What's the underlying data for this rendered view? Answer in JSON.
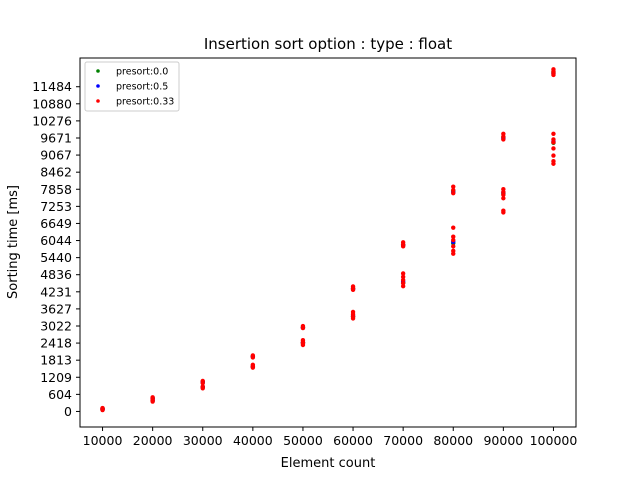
{
  "chart_data": {
    "type": "scatter",
    "title": "Insertion sort option : type : float",
    "xlabel": "Element count",
    "ylabel": "Sorting time [ms]",
    "xlim": [
      5500,
      104500
    ],
    "ylim": [
      -550,
      12500
    ],
    "xticks": [
      10000,
      20000,
      30000,
      40000,
      50000,
      60000,
      70000,
      80000,
      90000,
      100000
    ],
    "xtick_labels": [
      "10000",
      "20000",
      "30000",
      "40000",
      "50000",
      "60000",
      "70000",
      "80000",
      "90000",
      "100000"
    ],
    "yticks": [
      0,
      604,
      1209,
      1813,
      2418,
      3022,
      3627,
      4231,
      4836,
      5440,
      6044,
      6649,
      7253,
      7858,
      8462,
      9067,
      9671,
      10276,
      10880,
      11484
    ],
    "ytick_labels": [
      "0",
      "604",
      "1209",
      "1813",
      "2418",
      "3022",
      "3627",
      "4231",
      "4836",
      "5440",
      "6044",
      "6649",
      "7253",
      "7858",
      "8462",
      "9067",
      "9671",
      "10276",
      "10880",
      "11484"
    ],
    "grid": false,
    "legend_position": "top-left",
    "series": [
      {
        "name": "presort:0.0",
        "color": "#008000",
        "points": [
          [
            10000,
            110
          ],
          [
            10000,
            60
          ],
          [
            20000,
            470
          ],
          [
            20000,
            380
          ],
          [
            30000,
            1050
          ],
          [
            30000,
            860
          ],
          [
            40000,
            1950
          ],
          [
            40000,
            1580
          ],
          [
            50000,
            2980
          ],
          [
            50000,
            2430
          ],
          [
            60000,
            4350
          ],
          [
            60000,
            3350
          ],
          [
            70000,
            5900
          ],
          [
            70000,
            4550
          ],
          [
            80000,
            7800
          ],
          [
            80000,
            5950
          ],
          [
            90000,
            9700
          ],
          [
            90000,
            7700
          ],
          [
            100000,
            12000
          ],
          [
            100000,
            9500
          ]
        ]
      },
      {
        "name": "presort:0.5",
        "color": "#0000ff",
        "points": [
          [
            10000,
            100
          ],
          [
            10000,
            70
          ],
          [
            20000,
            460
          ],
          [
            20000,
            390
          ],
          [
            30000,
            1040
          ],
          [
            30000,
            870
          ],
          [
            40000,
            1940
          ],
          [
            40000,
            1590
          ],
          [
            50000,
            2960
          ],
          [
            50000,
            2440
          ],
          [
            60000,
            4330
          ],
          [
            60000,
            3380
          ],
          [
            70000,
            5880
          ],
          [
            70000,
            4600
          ],
          [
            80000,
            7750
          ],
          [
            80000,
            6000
          ],
          [
            90000,
            9650
          ],
          [
            90000,
            7750
          ],
          [
            100000,
            11950
          ],
          [
            100000,
            9550
          ]
        ]
      },
      {
        "name": "presort:0.33",
        "color": "#ff0000",
        "points": [
          [
            10000,
            120
          ],
          [
            10000,
            80
          ],
          [
            10000,
            50
          ],
          [
            10000,
            95
          ],
          [
            20000,
            500
          ],
          [
            20000,
            440
          ],
          [
            20000,
            400
          ],
          [
            20000,
            350
          ],
          [
            30000,
            1080
          ],
          [
            30000,
            1000
          ],
          [
            30000,
            880
          ],
          [
            30000,
            820
          ],
          [
            40000,
            1980
          ],
          [
            40000,
            1910
          ],
          [
            40000,
            1650
          ],
          [
            40000,
            1600
          ],
          [
            40000,
            1550
          ],
          [
            50000,
            3020
          ],
          [
            50000,
            2950
          ],
          [
            50000,
            2520
          ],
          [
            50000,
            2450
          ],
          [
            50000,
            2400
          ],
          [
            50000,
            2350
          ],
          [
            60000,
            4420
          ],
          [
            60000,
            4360
          ],
          [
            60000,
            4300
          ],
          [
            60000,
            3520
          ],
          [
            60000,
            3440
          ],
          [
            60000,
            3360
          ],
          [
            60000,
            3290
          ],
          [
            70000,
            5980
          ],
          [
            70000,
            5900
          ],
          [
            70000,
            5840
          ],
          [
            70000,
            4880
          ],
          [
            70000,
            4760
          ],
          [
            70000,
            4650
          ],
          [
            70000,
            4540
          ],
          [
            70000,
            4430
          ],
          [
            80000,
            7950
          ],
          [
            80000,
            7830
          ],
          [
            80000,
            7720
          ],
          [
            80000,
            6500
          ],
          [
            80000,
            6180
          ],
          [
            80000,
            6060
          ],
          [
            80000,
            5840
          ],
          [
            80000,
            5680
          ],
          [
            80000,
            5580
          ],
          [
            90000,
            9820
          ],
          [
            90000,
            9720
          ],
          [
            90000,
            9620
          ],
          [
            90000,
            7860
          ],
          [
            90000,
            7760
          ],
          [
            90000,
            7660
          ],
          [
            90000,
            7540
          ],
          [
            90000,
            7100
          ],
          [
            90000,
            7040
          ],
          [
            100000,
            12100
          ],
          [
            100000,
            12030
          ],
          [
            100000,
            11960
          ],
          [
            100000,
            11900
          ],
          [
            100000,
            9820
          ],
          [
            100000,
            9620
          ],
          [
            100000,
            9520
          ],
          [
            100000,
            9300
          ],
          [
            100000,
            9050
          ],
          [
            100000,
            8850
          ],
          [
            100000,
            8760
          ]
        ]
      }
    ]
  }
}
